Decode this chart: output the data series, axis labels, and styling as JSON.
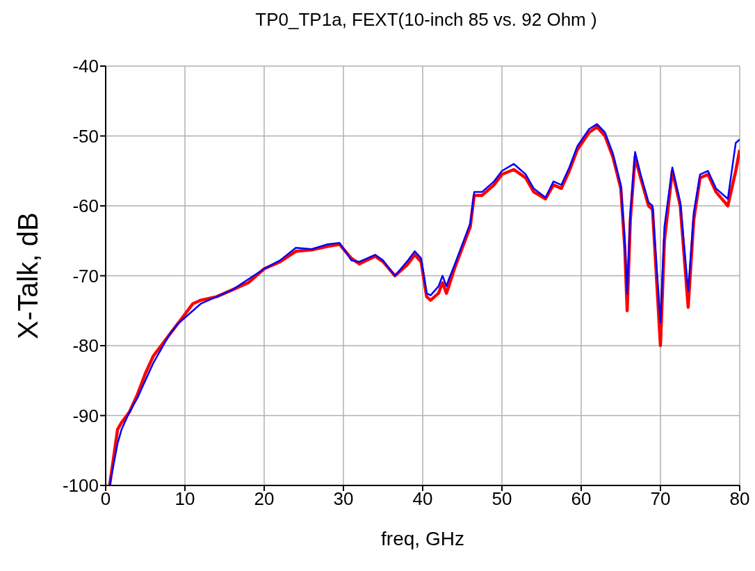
{
  "chart_data": {
    "type": "line",
    "title": "TP0_TP1a, FEXT(10-inch 85 vs. 92 Ohm )",
    "xlabel": "freq, GHz",
    "ylabel": "X-Talk, dB",
    "xlim": [
      0,
      80
    ],
    "xticks": [
      0,
      10,
      20,
      30,
      40,
      50,
      60,
      70,
      80
    ],
    "ylim": [
      -100,
      -40
    ],
    "yticks": [
      -100,
      -90,
      -80,
      -70,
      -60,
      -50,
      -40
    ],
    "grid": true,
    "marker": "none",
    "line_style": "solid",
    "x": [
      0.5,
      1,
      1.5,
      2,
      3,
      4,
      5,
      6,
      7,
      8,
      9,
      10,
      11,
      12,
      14,
      16,
      18,
      20,
      22,
      24,
      26,
      28,
      29.5,
      31,
      32,
      34,
      35,
      36.5,
      38,
      39,
      39.8,
      40.5,
      41,
      42,
      42.5,
      43,
      43.3,
      44,
      46,
      46.5,
      47.5,
      48,
      49,
      50,
      51.5,
      53,
      54,
      55.5,
      56.5,
      57.5,
      58.5,
      59.5,
      61,
      62,
      63,
      64,
      65,
      65.5,
      65.8,
      66.2,
      66.8,
      67.5,
      68.5,
      69,
      70,
      70.5,
      71.5,
      72.5,
      73.5,
      74.2,
      75,
      76,
      77,
      78.5,
      79.5,
      80
    ],
    "series": [
      {
        "color": "#ff0000",
        "values": [
          -100,
          -96,
          -92,
          -91,
          -89.5,
          -87,
          -84,
          -81.5,
          -80,
          -78.5,
          -77,
          -75.5,
          -74,
          -73.5,
          -73,
          -72,
          -71,
          -69,
          -68,
          -66.5,
          -66.3,
          -65.8,
          -65.5,
          -67.5,
          -68.3,
          -67.2,
          -68,
          -70,
          -68.5,
          -67,
          -68,
          -73,
          -73.5,
          -72.5,
          -71,
          -72.5,
          -71.5,
          -69,
          -63,
          -58.5,
          -58.5,
          -58,
          -57,
          -55.5,
          -54.8,
          -56,
          -58,
          -59,
          -57,
          -57.5,
          -55,
          -52,
          -49.5,
          -48.7,
          -50,
          -53,
          -57.5,
          -66,
          -75,
          -62,
          -53,
          -56,
          -60,
          -60.5,
          -80,
          -65,
          -55,
          -60,
          -74.5,
          -62,
          -56,
          -55.5,
          -58,
          -60,
          -55,
          -52
        ]
      },
      {
        "color": "#0000ff",
        "values": [
          -100,
          -97,
          -94,
          -92,
          -89.5,
          -87.5,
          -85,
          -82.5,
          -80.5,
          -78.5,
          -77,
          -76,
          -75,
          -74,
          -73,
          -72,
          -70.5,
          -69,
          -67.8,
          -66,
          -66.2,
          -65.5,
          -65.3,
          -67.8,
          -68,
          -67,
          -67.8,
          -70,
          -68,
          -66.5,
          -67.5,
          -72.5,
          -72.8,
          -71.5,
          -70,
          -71.5,
          -70.5,
          -68.5,
          -62.5,
          -58,
          -58,
          -57.5,
          -56.5,
          -55,
          -54,
          -55.5,
          -57.5,
          -58.8,
          -56.5,
          -57,
          -54.5,
          -51.5,
          -49,
          -48.3,
          -49.5,
          -52.5,
          -57,
          -65,
          -72.6,
          -61,
          -52.3,
          -55.5,
          -59.5,
          -60,
          -76.7,
          -63,
          -54.5,
          -59.5,
          -72.2,
          -61,
          -55.5,
          -55,
          -57.5,
          -59,
          -51,
          -50.5
        ]
      }
    ]
  }
}
